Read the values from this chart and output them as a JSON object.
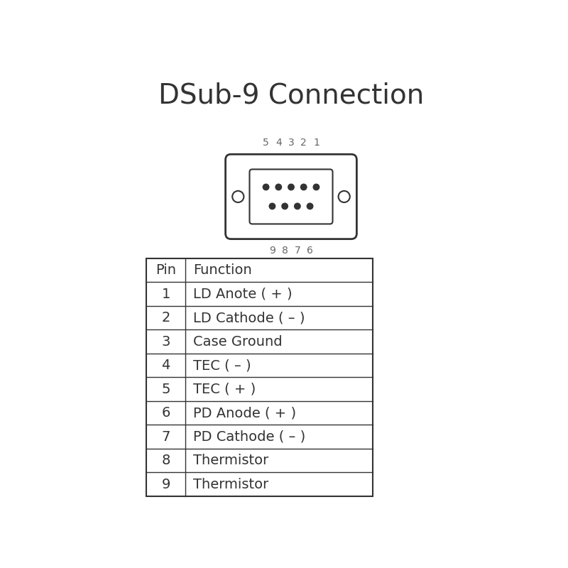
{
  "title": "DSub-9 Connection",
  "title_fontsize": 28,
  "background_color": "#ffffff",
  "table_data": [
    [
      "Pin",
      "Function"
    ],
    [
      "1",
      "LD Anote ( + )"
    ],
    [
      "2",
      "LD Cathode ( – )"
    ],
    [
      "3",
      "Case Ground"
    ],
    [
      "4",
      "TEC ( – )"
    ],
    [
      "5",
      "TEC ( + )"
    ],
    [
      "6",
      "PD Anode ( + )"
    ],
    [
      "7",
      "PD Cathode ( – )"
    ],
    [
      "8",
      "Thermistor"
    ],
    [
      "9",
      "Thermistor"
    ]
  ],
  "top_labels": [
    "5",
    "4",
    "3",
    "2",
    "1"
  ],
  "bottom_labels": [
    "9",
    "8",
    "7",
    "6"
  ],
  "connector_color": "#333333",
  "label_color": "#666666",
  "text_color": "#333333",
  "table_font_size": 14,
  "header_font_size": 14,
  "label_font_size": 10
}
